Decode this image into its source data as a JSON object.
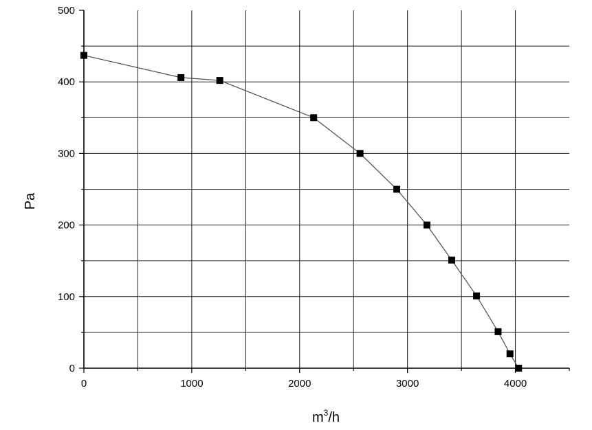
{
  "chart_data": {
    "type": "line",
    "xlabel": {
      "base": "m",
      "sup": "3",
      "rest": "/h"
    },
    "ylabel": "Pa",
    "xlim": [
      0,
      4500
    ],
    "ylim": [
      0,
      500
    ],
    "x_ticks": [
      0,
      1000,
      2000,
      3000,
      4000
    ],
    "y_ticks": [
      0,
      100,
      200,
      300,
      400,
      500
    ],
    "x_tick_labels": [
      "0",
      "1000",
      "2000",
      "3000",
      "4000"
    ],
    "y_tick_labels": [
      "0",
      "100",
      "200",
      "300",
      "400",
      "500"
    ],
    "grid": true,
    "grid_step_x": 500,
    "grid_step_y": 50,
    "marker": "square",
    "series": [
      {
        "x": [
          0,
          900,
          1260,
          2130,
          2560,
          2900,
          3180,
          3410,
          3640,
          3840,
          3950,
          4030
        ],
        "y": [
          437,
          406,
          402,
          350,
          300,
          250,
          200,
          151,
          101,
          51,
          20,
          0
        ]
      }
    ],
    "colors": {
      "line": "#555555",
      "marker": "#000000",
      "grid": "#1a1a1a",
      "axis": "#000000"
    }
  }
}
